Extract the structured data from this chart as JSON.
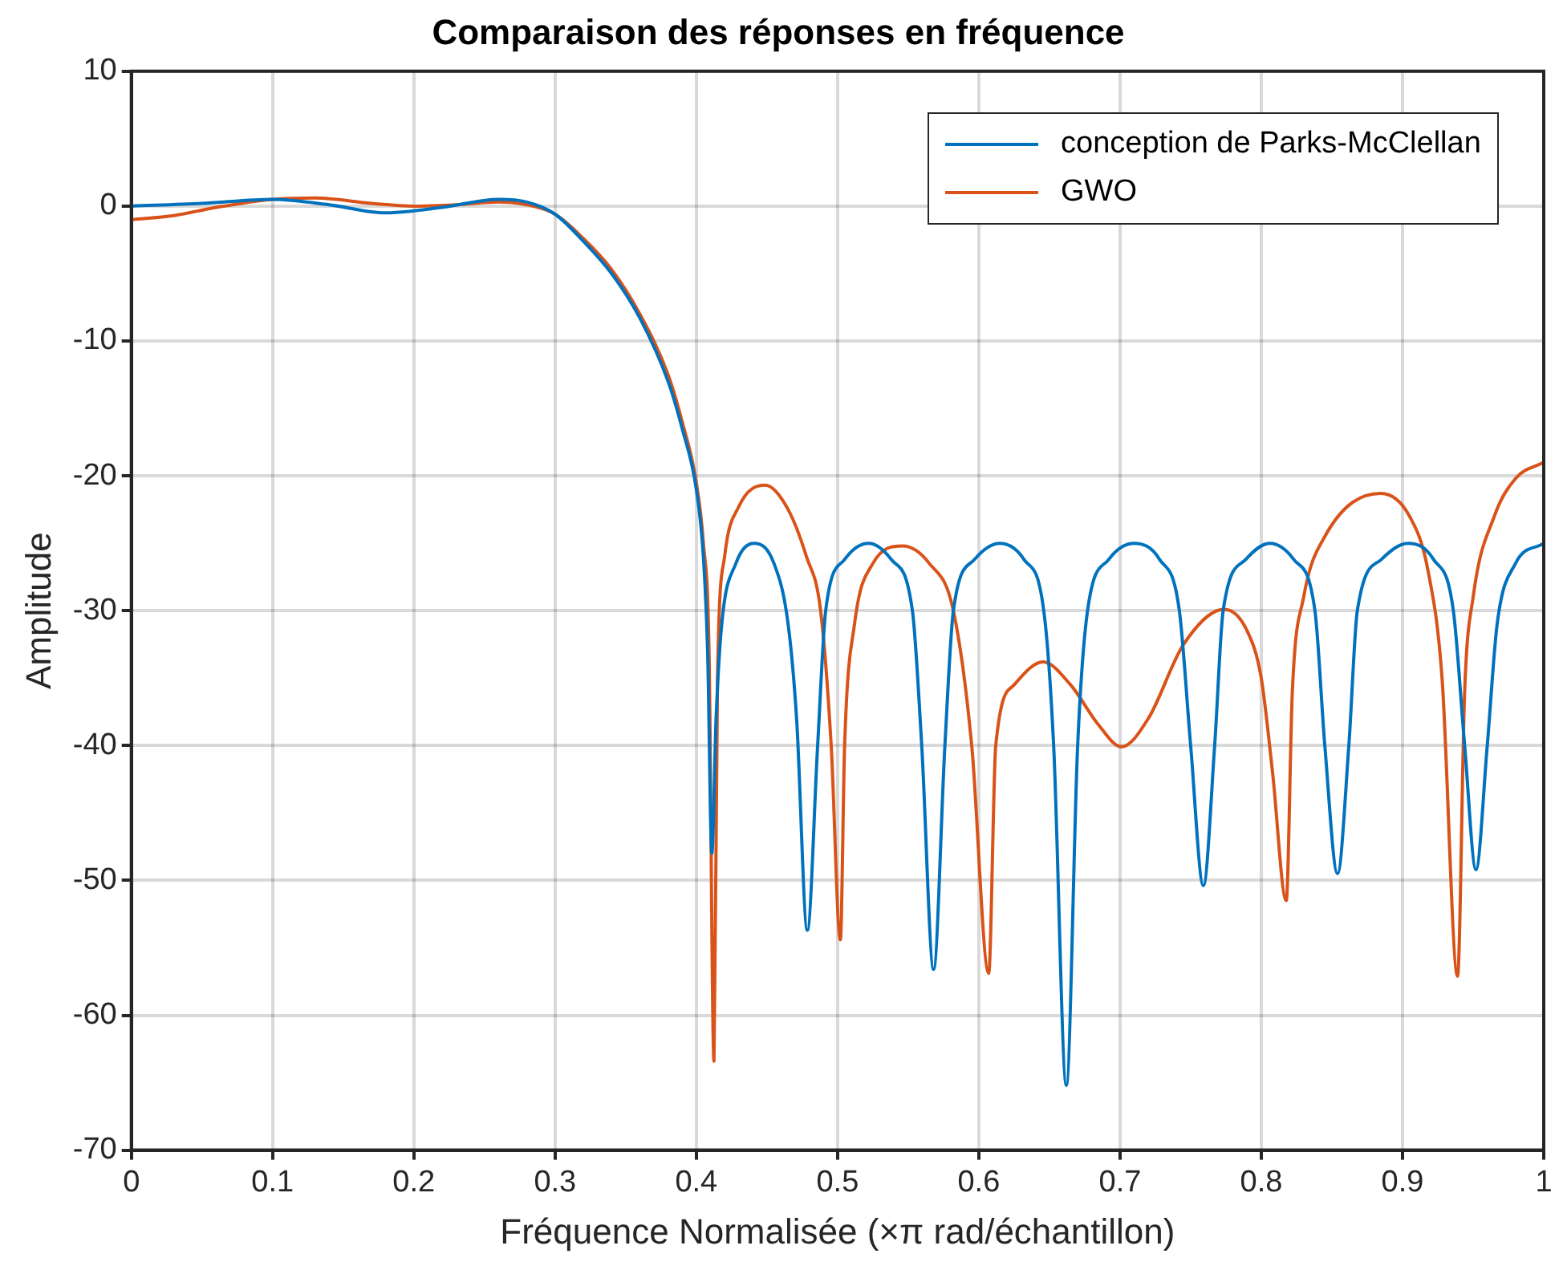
{
  "chart_data": {
    "type": "line",
    "title": "Comparaison des réponses en fréquence",
    "xlabel": "Fréquence Normalisée (×π rad/échantillon)",
    "ylabel": "Amplitude",
    "xlim": [
      0,
      1
    ],
    "xticks": [
      0,
      0.1,
      0.2,
      0.3,
      0.4,
      0.5,
      0.6,
      0.7,
      0.8,
      0.9,
      1
    ],
    "ylim": [
      -70,
      10
    ],
    "yticks": [
      -70,
      -60,
      -50,
      -40,
      -30,
      -20,
      -10,
      0,
      10
    ],
    "grid": true,
    "legend": "top right",
    "marker": "none",
    "line_style": "solid",
    "series": [
      {
        "name": "conception de Parks-McClellan",
        "color": "#0072bd",
        "x": [
          0,
          0.05,
          0.1,
          0.14,
          0.18,
          0.22,
          0.26,
          0.28,
          0.3,
          0.32,
          0.34,
          0.36,
          0.38,
          0.39,
          0.4,
          0.405,
          0.408,
          0.411,
          0.414,
          0.418,
          0.428,
          0.441,
          0.455,
          0.465,
          0.471,
          0.4786,
          0.4859,
          0.4916,
          0.505,
          0.522,
          0.538,
          0.553,
          0.5596,
          0.568,
          0.576,
          0.582,
          0.597,
          0.615,
          0.632,
          0.646,
          0.653,
          0.662,
          0.67,
          0.677,
          0.692,
          0.71,
          0.728,
          0.742,
          0.75,
          0.759,
          0.767,
          0.773,
          0.789,
          0.806,
          0.823,
          0.838,
          0.845,
          0.854,
          0.862,
          0.868,
          0.885,
          0.904,
          0.922,
          0.936,
          0.944,
          0.952,
          0.96,
          0.967,
          0.98,
          1
        ],
        "values": [
          0,
          0.2,
          0.5,
          0.1,
          -0.5,
          -0.1,
          0.5,
          0.3,
          -0.6,
          -2.6,
          -5,
          -8.3,
          -13,
          -16.5,
          -21,
          -26,
          -33,
          -48,
          -38,
          -31,
          -26.5,
          -25,
          -26.5,
          -31,
          -38,
          -53.7,
          -40,
          -30,
          -26.2,
          -25,
          -26.2,
          -30,
          -40,
          -56.6,
          -40,
          -30,
          -26.2,
          -25,
          -26.2,
          -30,
          -40,
          -65.2,
          -40,
          -30,
          -26.2,
          -25,
          -26.2,
          -30,
          -40,
          -50.4,
          -40,
          -30,
          -26.2,
          -25,
          -26.2,
          -30,
          -40,
          -49.5,
          -40,
          -30,
          -26.2,
          -25,
          -26.2,
          -30,
          -40,
          -49.2,
          -40,
          -31,
          -26.5,
          -25
        ]
      },
      {
        "name": "GWO",
        "color": "#d95319",
        "x": [
          0,
          0.03,
          0.06,
          0.1,
          0.13,
          0.17,
          0.2,
          0.23,
          0.26,
          0.28,
          0.3,
          0.32,
          0.34,
          0.36,
          0.38,
          0.39,
          0.4,
          0.405,
          0.409,
          0.4125,
          0.415,
          0.42,
          0.43,
          0.4488,
          0.465,
          0.478,
          0.488,
          0.4955,
          0.502,
          0.505,
          0.512,
          0.525,
          0.546,
          0.565,
          0.582,
          0.595,
          0.607,
          0.612,
          0.625,
          0.6456,
          0.665,
          0.685,
          0.701,
          0.72,
          0.745,
          0.7737,
          0.79,
          0.8,
          0.808,
          0.8177,
          0.822,
          0.83,
          0.845,
          0.8846,
          0.905,
          0.918,
          0.928,
          0.939,
          0.944,
          0.95,
          0.965,
          0.98,
          1
        ],
        "values": [
          -1,
          -0.7,
          -0.1,
          0.5,
          0.6,
          0.2,
          0,
          0.1,
          0.3,
          0.1,
          -0.6,
          -2.4,
          -4.7,
          -8,
          -12.5,
          -16,
          -20.5,
          -25,
          -33,
          -63.4,
          -35,
          -26,
          -22.3,
          -20.7,
          -22.5,
          -26,
          -30,
          -40,
          -54.4,
          -40,
          -31,
          -26.5,
          -25.2,
          -26.5,
          -30,
          -40,
          -56.9,
          -40,
          -35.5,
          -33.8,
          -35.5,
          -38.5,
          -40.1,
          -38,
          -32.5,
          -29.9,
          -31.5,
          -35,
          -42,
          -51.5,
          -36,
          -29,
          -24.5,
          -21.3,
          -23,
          -27,
          -35,
          -57.1,
          -36,
          -29,
          -23,
          -20.2,
          -19
        ]
      }
    ]
  }
}
